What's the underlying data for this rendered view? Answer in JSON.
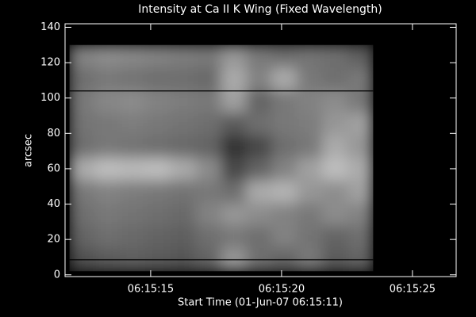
{
  "chart_data": {
    "type": "heatmap",
    "title": "Intensity at Ca II K Wing (Fixed Wavelength)",
    "xlabel": "Start Time (01-Jun-07 06:15:11)",
    "ylabel": "arcsec",
    "xlim": [
      0.73,
      15.67
    ],
    "ylim": [
      -1,
      142
    ],
    "xticks": [
      {
        "value": 4,
        "label": "06:15:15"
      },
      {
        "value": 9,
        "label": "06:15:20"
      },
      {
        "value": 14,
        "label": "06:15:25"
      }
    ],
    "yticks": [
      0,
      20,
      40,
      60,
      80,
      100,
      120,
      140
    ],
    "image_xlim": [
      0.9,
      12.5
    ],
    "image_ylim": [
      2,
      130
    ],
    "z": [
      [
        130,
        140,
        135,
        130,
        125,
        120,
        150,
        120,
        110,
        115,
        110,
        95
      ],
      [
        110,
        120,
        115,
        110,
        110,
        105,
        170,
        130,
        170,
        120,
        110,
        120
      ],
      [
        120,
        135,
        140,
        130,
        125,
        120,
        160,
        100,
        120,
        130,
        140,
        120
      ],
      [
        115,
        120,
        125,
        120,
        115,
        110,
        90,
        110,
        120,
        125,
        150,
        160
      ],
      [
        110,
        120,
        115,
        110,
        105,
        100,
        50,
        70,
        110,
        120,
        170,
        150
      ],
      [
        170,
        190,
        185,
        190,
        170,
        140,
        70,
        100,
        130,
        160,
        190,
        170
      ],
      [
        120,
        130,
        125,
        120,
        115,
        120,
        110,
        170,
        180,
        150,
        140,
        160
      ],
      [
        110,
        120,
        115,
        110,
        105,
        130,
        150,
        140,
        130,
        120,
        140,
        130
      ],
      [
        100,
        110,
        105,
        100,
        95,
        110,
        120,
        110,
        130,
        115,
        100,
        110
      ],
      [
        80,
        90,
        95,
        90,
        85,
        100,
        150,
        110,
        100,
        120,
        90,
        100
      ]
    ],
    "hlines": [
      104,
      8.5
    ]
  }
}
